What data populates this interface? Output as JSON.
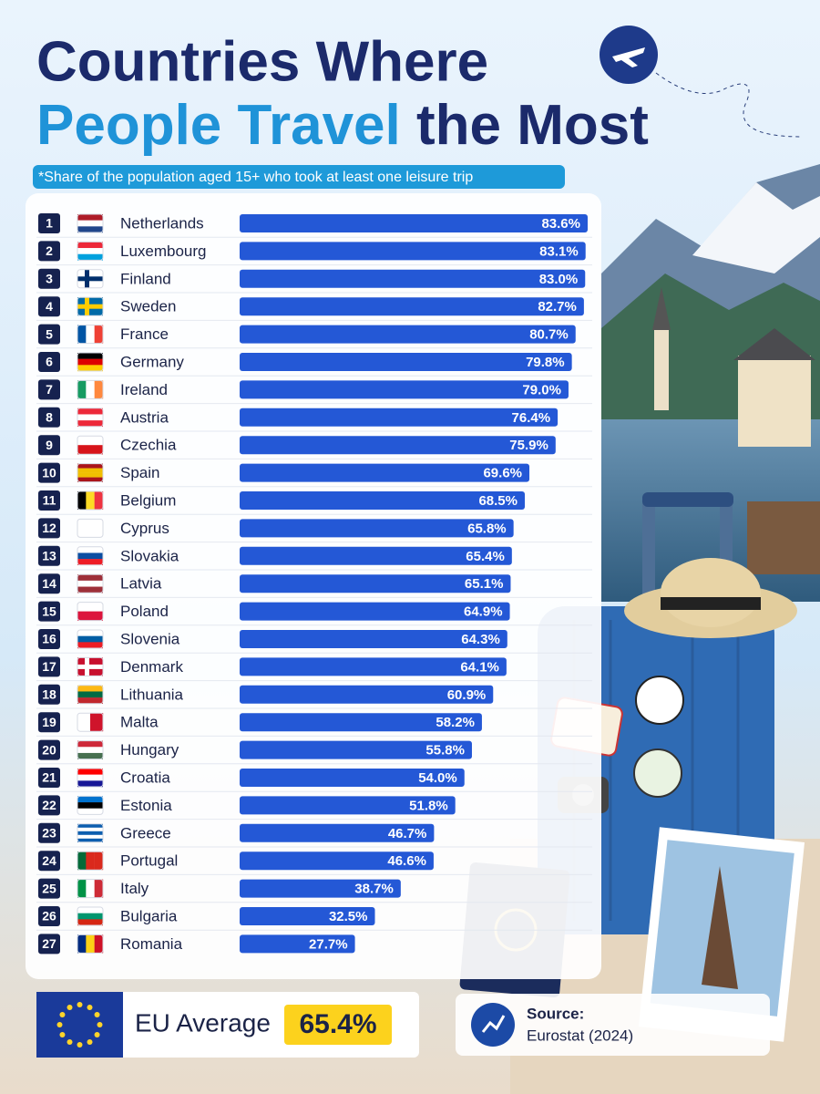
{
  "chart_data": {
    "type": "bar",
    "title_parts": [
      "Countries Where",
      "People Travel",
      "the Most"
    ],
    "subtitle": "*Share of the population aged 15+ who took at least one leisure trip",
    "ranks": [
      1,
      2,
      3,
      4,
      5,
      6,
      7,
      8,
      9,
      10,
      11,
      12,
      13,
      14,
      15,
      16,
      17,
      18,
      19,
      20,
      21,
      22,
      23,
      24,
      25,
      26,
      27
    ],
    "categories": [
      "Netherlands",
      "Luxembourg",
      "Finland",
      "Sweden",
      "France",
      "Germany",
      "Ireland",
      "Austria",
      "Czechia",
      "Spain",
      "Belgium",
      "Cyprus",
      "Slovakia",
      "Latvia",
      "Poland",
      "Slovenia",
      "Denmark",
      "Lithuania",
      "Malta",
      "Hungary",
      "Croatia",
      "Estonia",
      "Greece",
      "Portugal",
      "Italy",
      "Bulgaria",
      "Romania"
    ],
    "values": [
      83.6,
      83.1,
      83.0,
      82.7,
      80.7,
      79.8,
      79.0,
      76.4,
      75.9,
      69.6,
      68.5,
      65.8,
      65.4,
      65.1,
      64.9,
      64.3,
      64.1,
      60.9,
      58.2,
      55.8,
      54.0,
      51.8,
      46.7,
      46.6,
      38.7,
      32.5,
      27.7
    ],
    "value_labels": [
      "83.6%",
      "83.1%",
      "83.0%",
      "82.7%",
      "80.7%",
      "79.8%",
      "79.0%",
      "76.4%",
      "75.9%",
      "69.6%",
      "68.5%",
      "65.8%",
      "65.4%",
      "65.1%",
      "64.9%",
      "64.3%",
      "64.1%",
      "60.9%",
      "58.2%",
      "55.8%",
      "54.0%",
      "51.8%",
      "46.7%",
      "46.6%",
      "38.7%",
      "32.5%",
      "27.7%"
    ],
    "color": "#2458d6",
    "eu_average_label": "EU Average",
    "eu_average_value": "65.4%",
    "source_label": "Source:",
    "source": "Eurostat (2024)"
  }
}
